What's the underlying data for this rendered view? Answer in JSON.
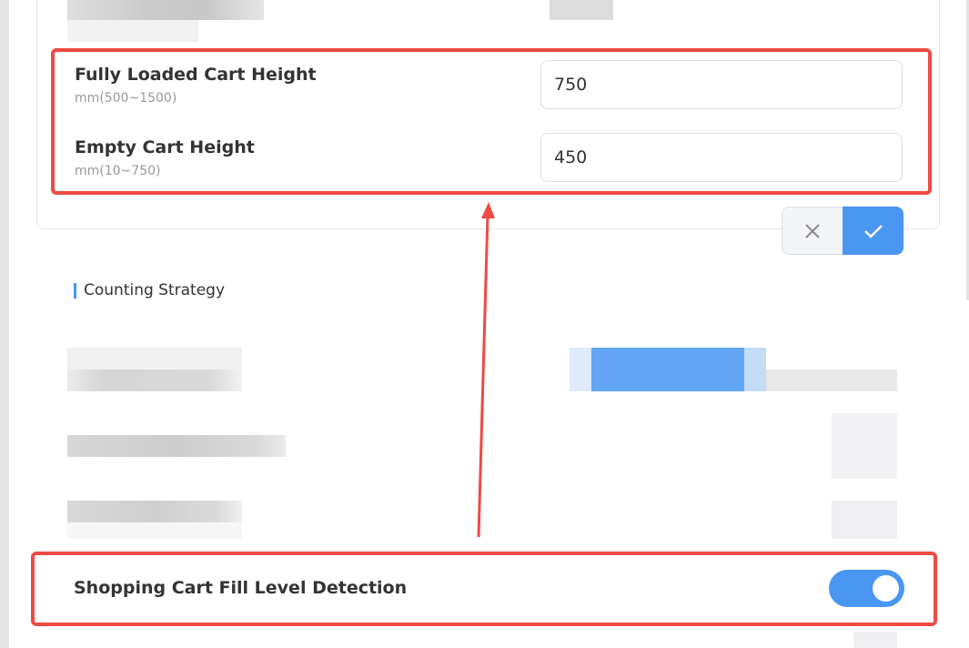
{
  "cart_height": {
    "full": {
      "label": "Fully Loaded Cart Height",
      "hint": "mm(500~1500)",
      "value": "750"
    },
    "empty": {
      "label": "Empty Cart Height",
      "hint": "mm(10~750)",
      "value": "450"
    },
    "cancel_icon": "close-icon",
    "confirm_icon": "check-icon"
  },
  "section": {
    "title": "Counting Strategy"
  },
  "fill_detection": {
    "label": "Shopping Cart Fill Level Detection",
    "on": true
  },
  "colors": {
    "accent": "#4a96f3",
    "annotation": "#ef4a43"
  }
}
